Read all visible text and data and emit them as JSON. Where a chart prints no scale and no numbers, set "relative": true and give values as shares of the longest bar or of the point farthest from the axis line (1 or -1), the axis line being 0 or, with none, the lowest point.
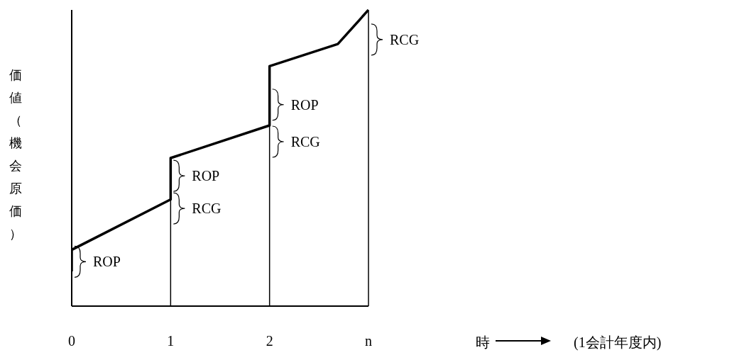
{
  "chart_data": {
    "type": "line",
    "relative": true,
    "ylabel": "価値（機会原価）",
    "x": [
      0,
      0,
      1,
      1,
      2,
      2,
      2.69,
      3
    ],
    "xlim": [
      0,
      3
    ],
    "xticks": [
      0,
      1,
      2,
      {
        "value": 3,
        "label": "n"
      }
    ],
    "series": [
      {
        "color": "#000000",
        "values": [
          0.117,
          0.19,
          0.36,
          0.5,
          0.61,
          0.81,
          0.885,
          1
        ]
      }
    ],
    "ref_lines": [
      {
        "axis": "x",
        "value": 1,
        "color": "#000000"
      },
      {
        "axis": "x",
        "value": 2,
        "color": "#000000"
      },
      {
        "axis": "x",
        "value": 3,
        "color": "#000000"
      }
    ],
    "annotations": [
      {
        "text": "ROP",
        "x": 0,
        "y": 0.15
      },
      {
        "text": "RCG",
        "x": 1,
        "y": 0.33
      },
      {
        "text": "ROP",
        "x": 1,
        "y": 0.44
      },
      {
        "text": "RCG",
        "x": 2,
        "y": 0.555
      },
      {
        "text": "ROP",
        "x": 2,
        "y": 0.68
      },
      {
        "text": "RCG",
        "x": 3,
        "y": 0.9
      },
      "時",
      "(1会計年度内)"
    ]
  }
}
